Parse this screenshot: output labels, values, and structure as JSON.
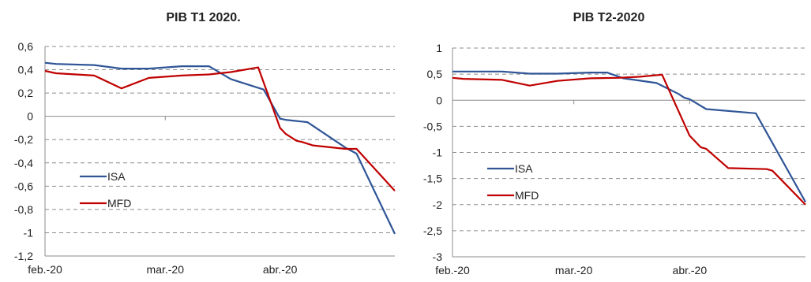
{
  "chart_data": [
    {
      "type": "line",
      "title": "PIB T1 2020.",
      "xlabel": "",
      "ylabel": "",
      "ylim": [
        -1.2,
        0.6
      ],
      "yticks": [
        "0,6",
        "0,4",
        "0,2",
        "0",
        "-0,2",
        "-0,4",
        "-0,6",
        "-0,8",
        "-1",
        "-1,2"
      ],
      "ytick_values": [
        0.6,
        0.4,
        0.2,
        0,
        -0.2,
        -0.4,
        -0.6,
        -0.8,
        -1,
        -1.2
      ],
      "xlim": [
        0,
        64
      ],
      "xticks": [
        {
          "label": "feb.-20",
          "x": 0
        },
        {
          "label": "mar.-20",
          "x": 22
        },
        {
          "label": "abr.-20",
          "x": 43
        }
      ],
      "grid": "horizontal-dashed",
      "legend": "left-bottom",
      "series": [
        {
          "name": "ISA",
          "color": "#2f5597",
          "points": [
            [
              0,
              0.46
            ],
            [
              2,
              0.45
            ],
            [
              9,
              0.44
            ],
            [
              14,
              0.41
            ],
            [
              19,
              0.41
            ],
            [
              25,
              0.43
            ],
            [
              30,
              0.43
            ],
            [
              34,
              0.32
            ],
            [
              40,
              0.23
            ],
            [
              43,
              -0.02
            ],
            [
              44,
              -0.03
            ],
            [
              46,
              -0.04
            ],
            [
              48,
              -0.05
            ],
            [
              55,
              -0.27
            ],
            [
              57,
              -0.32
            ],
            [
              64,
              -1.01
            ]
          ]
        },
        {
          "name": "MFD",
          "color": "#c00000",
          "points": [
            [
              0,
              0.39
            ],
            [
              2,
              0.37
            ],
            [
              9,
              0.35
            ],
            [
              14,
              0.24
            ],
            [
              19,
              0.33
            ],
            [
              25,
              0.35
            ],
            [
              30,
              0.36
            ],
            [
              34,
              0.38
            ],
            [
              39,
              0.42
            ],
            [
              43,
              -0.1
            ],
            [
              44,
              -0.15
            ],
            [
              46,
              -0.21
            ],
            [
              47,
              -0.22
            ],
            [
              49,
              -0.25
            ],
            [
              55,
              -0.28
            ],
            [
              57,
              -0.28
            ],
            [
              64,
              -0.64
            ]
          ]
        }
      ]
    },
    {
      "type": "line",
      "title": "PIB T2-2020",
      "xlabel": "",
      "ylabel": "",
      "ylim": [
        -3,
        1
      ],
      "yticks": [
        "1",
        "0,5",
        "0",
        "-0,5",
        "-1",
        "-1,5",
        "-2",
        "-2,5",
        "-3"
      ],
      "ytick_values": [
        1,
        0.5,
        0,
        -0.5,
        -1,
        -1.5,
        -2,
        -2.5,
        -3
      ],
      "xlim": [
        0,
        64
      ],
      "xticks": [
        {
          "label": "feb.-20",
          "x": 0
        },
        {
          "label": "mar.-20",
          "x": 22
        },
        {
          "label": "abr.-20",
          "x": 43
        }
      ],
      "grid": "horizontal-dashed",
      "legend": "left-bottom",
      "series": [
        {
          "name": "ISA",
          "color": "#2f5597",
          "points": [
            [
              0,
              0.55
            ],
            [
              9,
              0.55
            ],
            [
              14,
              0.51
            ],
            [
              19,
              0.51
            ],
            [
              25,
              0.53
            ],
            [
              28,
              0.53
            ],
            [
              31,
              0.42
            ],
            [
              37,
              0.33
            ],
            [
              41,
              0.12
            ],
            [
              42,
              0.05
            ],
            [
              43,
              0.02
            ],
            [
              46,
              -0.17
            ],
            [
              55,
              -0.25
            ],
            [
              64,
              -1.95
            ]
          ]
        },
        {
          "name": "MFD",
          "color": "#c00000",
          "points": [
            [
              0,
              0.43
            ],
            [
              2,
              0.41
            ],
            [
              9,
              0.39
            ],
            [
              14,
              0.28
            ],
            [
              19,
              0.37
            ],
            [
              25,
              0.42
            ],
            [
              30,
              0.43
            ],
            [
              34,
              0.45
            ],
            [
              38,
              0.49
            ],
            [
              43,
              -0.68
            ],
            [
              45,
              -0.9
            ],
            [
              46,
              -0.93
            ],
            [
              50,
              -1.3
            ],
            [
              57,
              -1.32
            ],
            [
              58,
              -1.35
            ],
            [
              64,
              -2.0
            ]
          ]
        }
      ]
    }
  ]
}
